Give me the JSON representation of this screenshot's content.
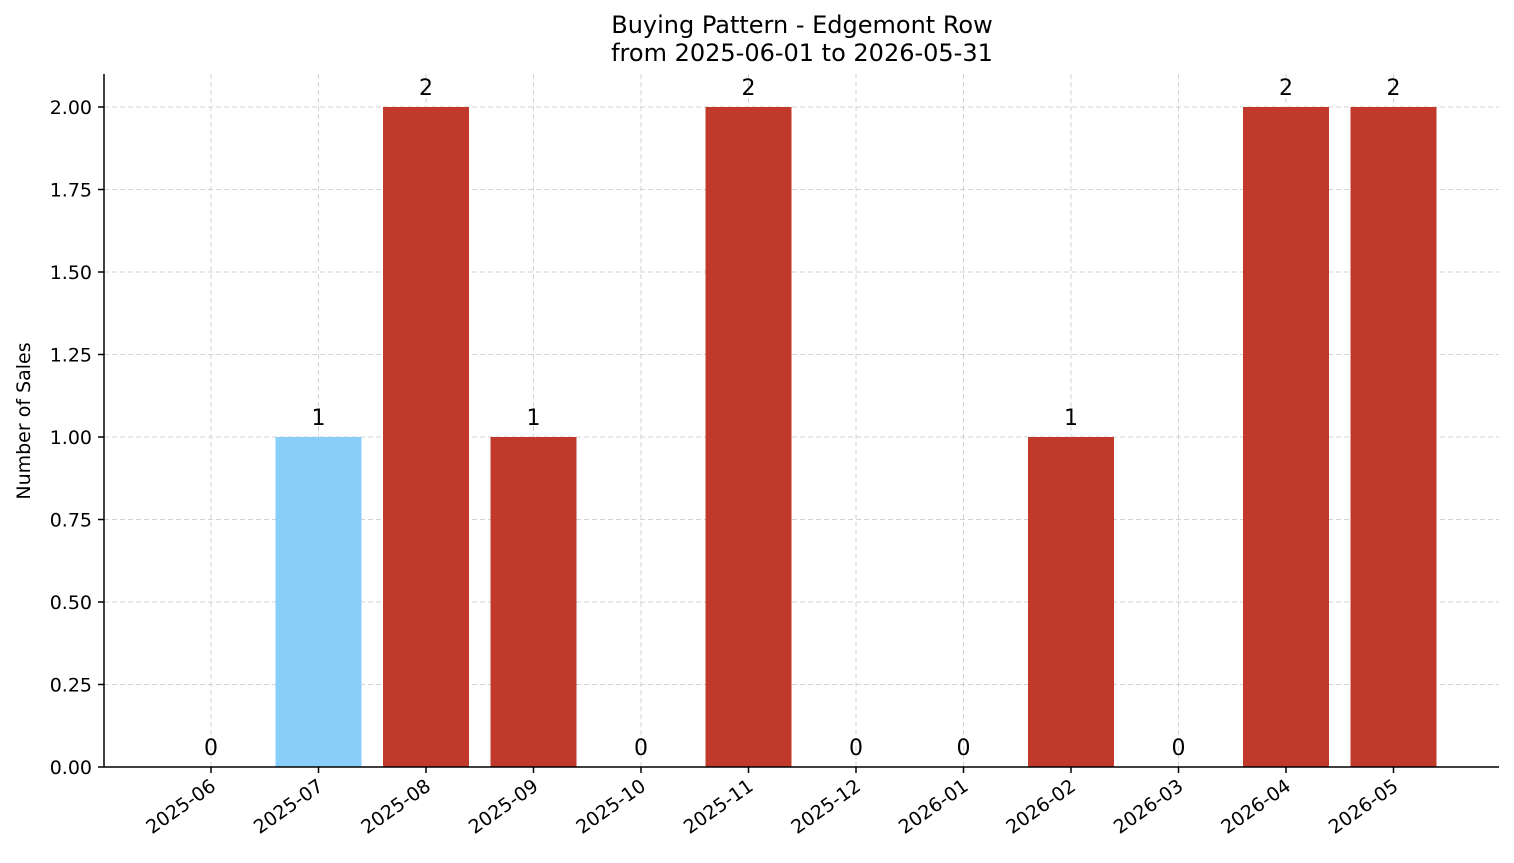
{
  "chart_data": {
    "type": "bar",
    "title": "Buying Pattern - Edgemont Row",
    "subtitle": "from 2025-06-01 to 2026-05-31",
    "xlabel": "",
    "ylabel": "Number of Sales",
    "categories": [
      "2025-06",
      "2025-07",
      "2025-08",
      "2025-09",
      "2025-10",
      "2025-11",
      "2025-12",
      "2026-01",
      "2026-02",
      "2026-03",
      "2026-04",
      "2026-05"
    ],
    "values": [
      0,
      1,
      2,
      1,
      0,
      2,
      0,
      0,
      1,
      0,
      2,
      2
    ],
    "data_labels": [
      "0",
      "1",
      "2",
      "1",
      "0",
      "2",
      "0",
      "0",
      "1",
      "0",
      "2",
      "2"
    ],
    "bar_colors": [
      "#c0392b",
      "#87cefa",
      "#c0392b",
      "#c0392b",
      "#c0392b",
      "#c0392b",
      "#c0392b",
      "#c0392b",
      "#c0392b",
      "#c0392b",
      "#c0392b",
      "#c0392b"
    ],
    "ylim": [
      0,
      2.1
    ],
    "yticks": [
      0,
      0.25,
      0.5,
      0.75,
      1.0,
      1.25,
      1.5,
      1.75,
      2.0
    ],
    "ytick_labels": [
      "0.00",
      "0.25",
      "0.50",
      "0.75",
      "1.00",
      "1.25",
      "1.50",
      "1.75",
      "2.00"
    ],
    "grid": true,
    "legend": "none"
  }
}
